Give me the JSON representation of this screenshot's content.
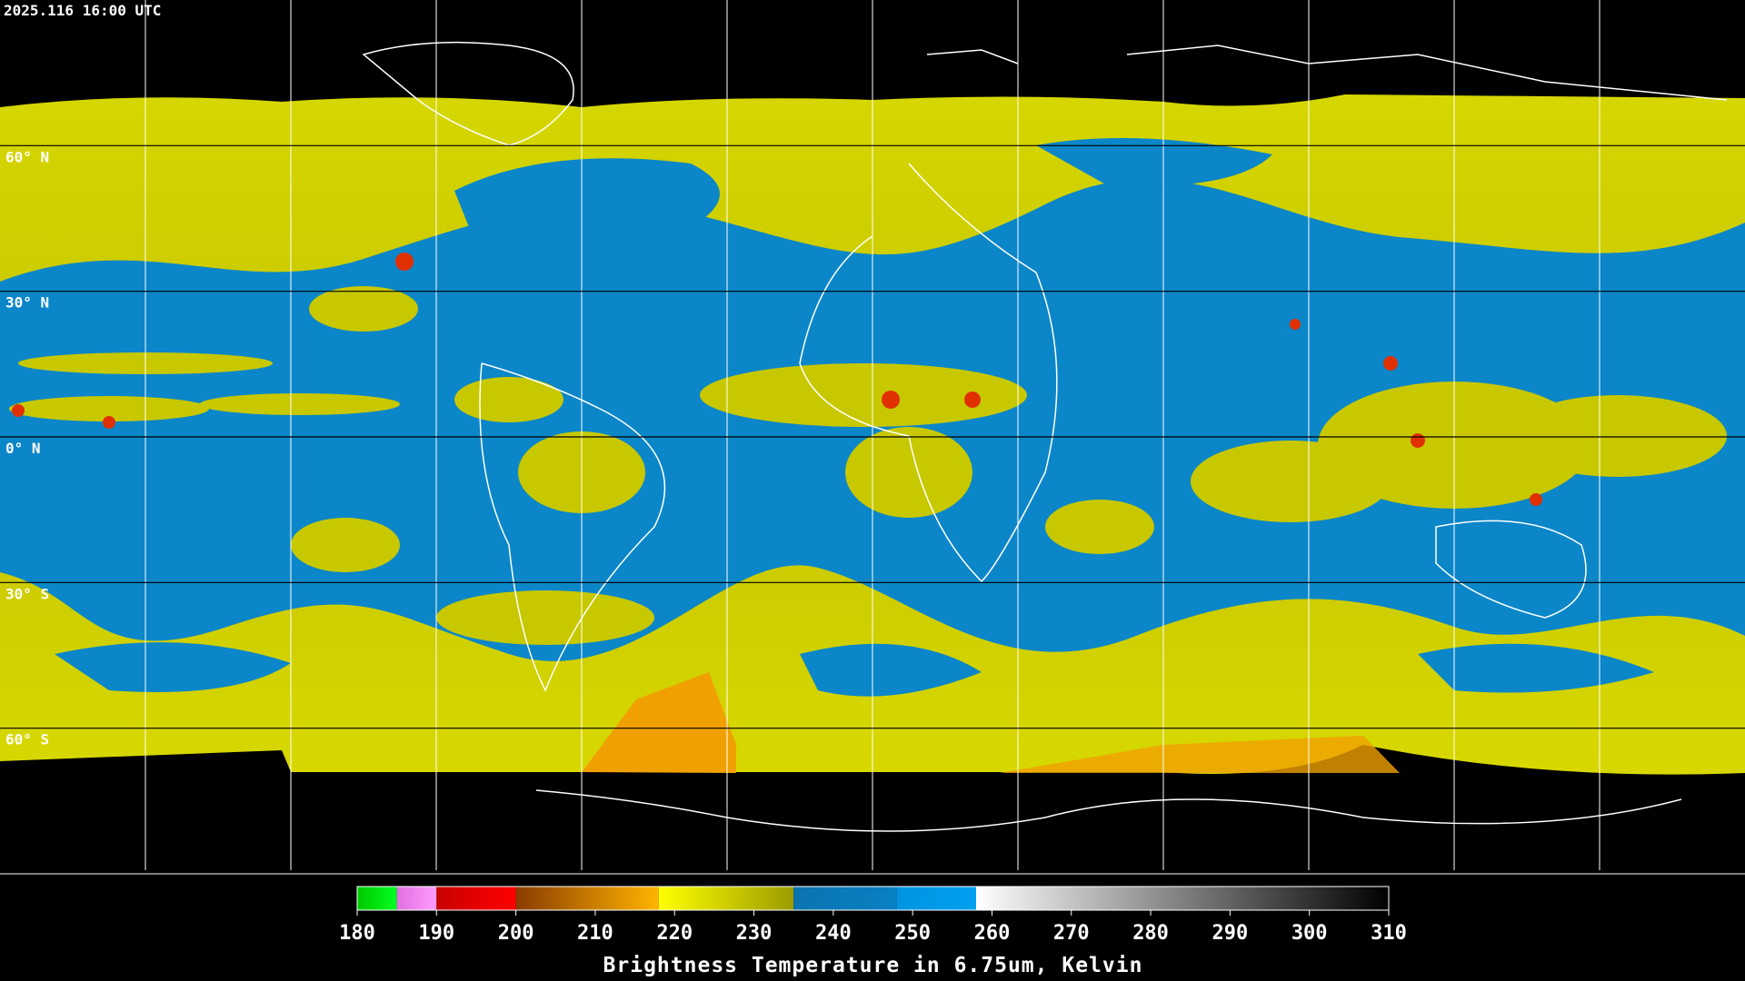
{
  "header": {
    "timestamp": "2025.116 16:00 UTC"
  },
  "map": {
    "lat_lines": [
      {
        "value": 60,
        "label": "60° N"
      },
      {
        "value": 30,
        "label": "30° N"
      },
      {
        "value": 0,
        "label": "0° N"
      },
      {
        "value": -30,
        "label": "30° S"
      },
      {
        "value": -60,
        "label": "60° S"
      }
    ]
  },
  "colorbar": {
    "title": "Brightness Temperature in 6.75um, Kelvin",
    "range": [
      180,
      310
    ],
    "ticks": [
      180,
      190,
      200,
      210,
      220,
      230,
      240,
      250,
      260,
      270,
      280,
      290,
      300,
      310
    ],
    "segments": [
      {
        "from": 180,
        "to": 185,
        "colors": [
          "#00c800",
          "#00ff20"
        ]
      },
      {
        "from": 185,
        "to": 190,
        "colors": [
          "#e070e0",
          "#ff9cff"
        ]
      },
      {
        "from": 190,
        "to": 200,
        "colors": [
          "#c80000",
          "#ff0000"
        ]
      },
      {
        "from": 200,
        "to": 218,
        "colors": [
          "#8a3c00",
          "#ffb400"
        ]
      },
      {
        "from": 218,
        "to": 235,
        "colors": [
          "#ffff00",
          "#9c9c00"
        ]
      },
      {
        "from": 235,
        "to": 248,
        "colors": [
          "#0a74b0",
          "#0a80c4"
        ]
      },
      {
        "from": 248,
        "to": 258,
        "colors": [
          "#0094e0",
          "#00a0f0"
        ]
      },
      {
        "from": 258,
        "to": 310,
        "colors": [
          "#ffffff",
          "#000000"
        ]
      }
    ]
  }
}
